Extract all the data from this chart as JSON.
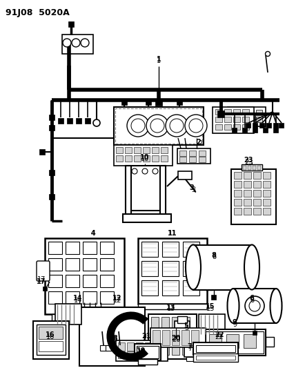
{
  "title": "91J08  5020A",
  "bg": "#ffffff",
  "fig_w": 4.14,
  "fig_h": 5.33,
  "dpi": 100
}
